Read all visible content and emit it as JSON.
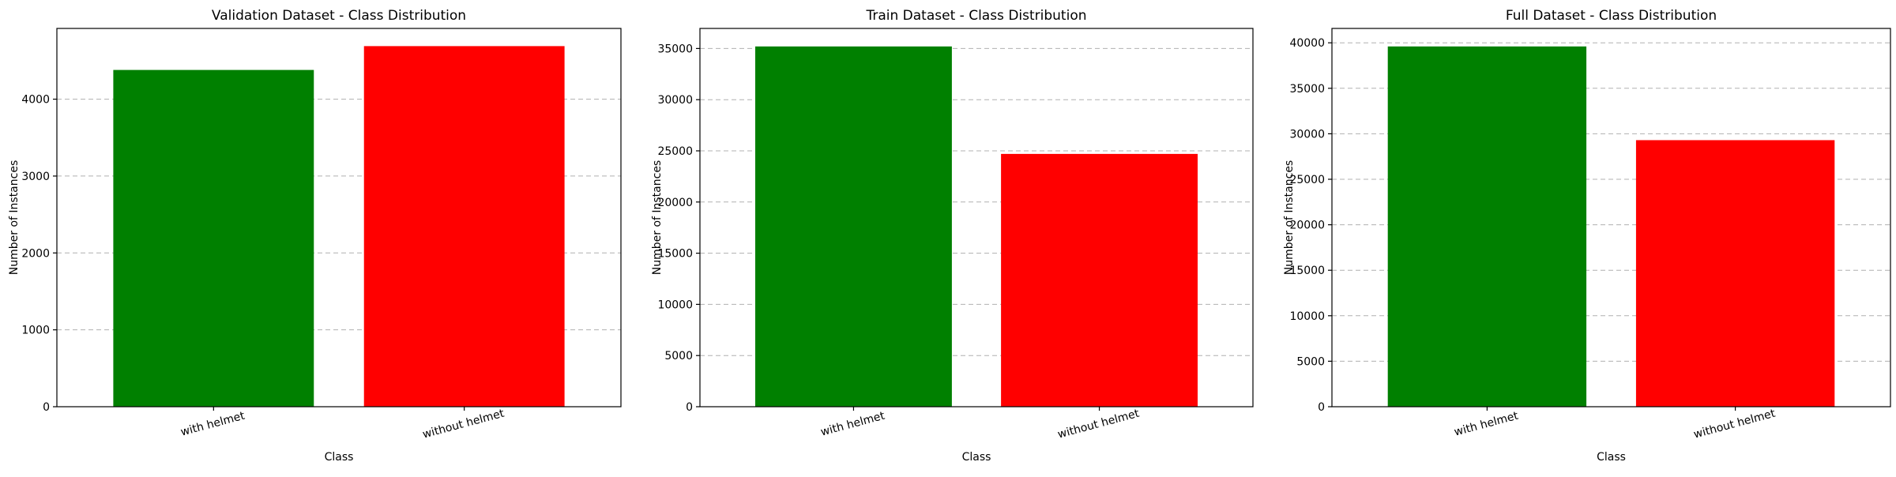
{
  "chart_data": [
    {
      "type": "bar",
      "title": "Validation Dataset - Class Distribution",
      "xlabel": "Class",
      "ylabel": "Number of Instances",
      "categories": [
        "with helmet",
        "without helmet"
      ],
      "values": [
        4380,
        4690
      ],
      "colors": [
        "#008000",
        "#ff0000"
      ],
      "ylim": [
        0,
        4920
      ],
      "yticks": [
        0,
        1000,
        2000,
        3000,
        4000
      ],
      "grid": "y-dashed"
    },
    {
      "type": "bar",
      "title": "Train Dataset - Class Distribution",
      "xlabel": "Class",
      "ylabel": "Number of Instances",
      "categories": [
        "with helmet",
        "without helmet"
      ],
      "values": [
        35200,
        24700
      ],
      "colors": [
        "#008000",
        "#ff0000"
      ],
      "ylim": [
        0,
        36960
      ],
      "yticks": [
        0,
        5000,
        10000,
        15000,
        20000,
        25000,
        30000,
        35000
      ],
      "grid": "y-dashed"
    },
    {
      "type": "bar",
      "title": "Full Dataset - Class Distribution",
      "xlabel": "Class",
      "ylabel": "Number of Instances",
      "categories": [
        "with helmet",
        "without helmet"
      ],
      "values": [
        39600,
        29300
      ],
      "colors": [
        "#008000",
        "#ff0000"
      ],
      "ylim": [
        0,
        41580
      ],
      "yticks": [
        0,
        5000,
        10000,
        15000,
        20000,
        25000,
        30000,
        35000,
        40000
      ],
      "grid": "y-dashed"
    }
  ]
}
